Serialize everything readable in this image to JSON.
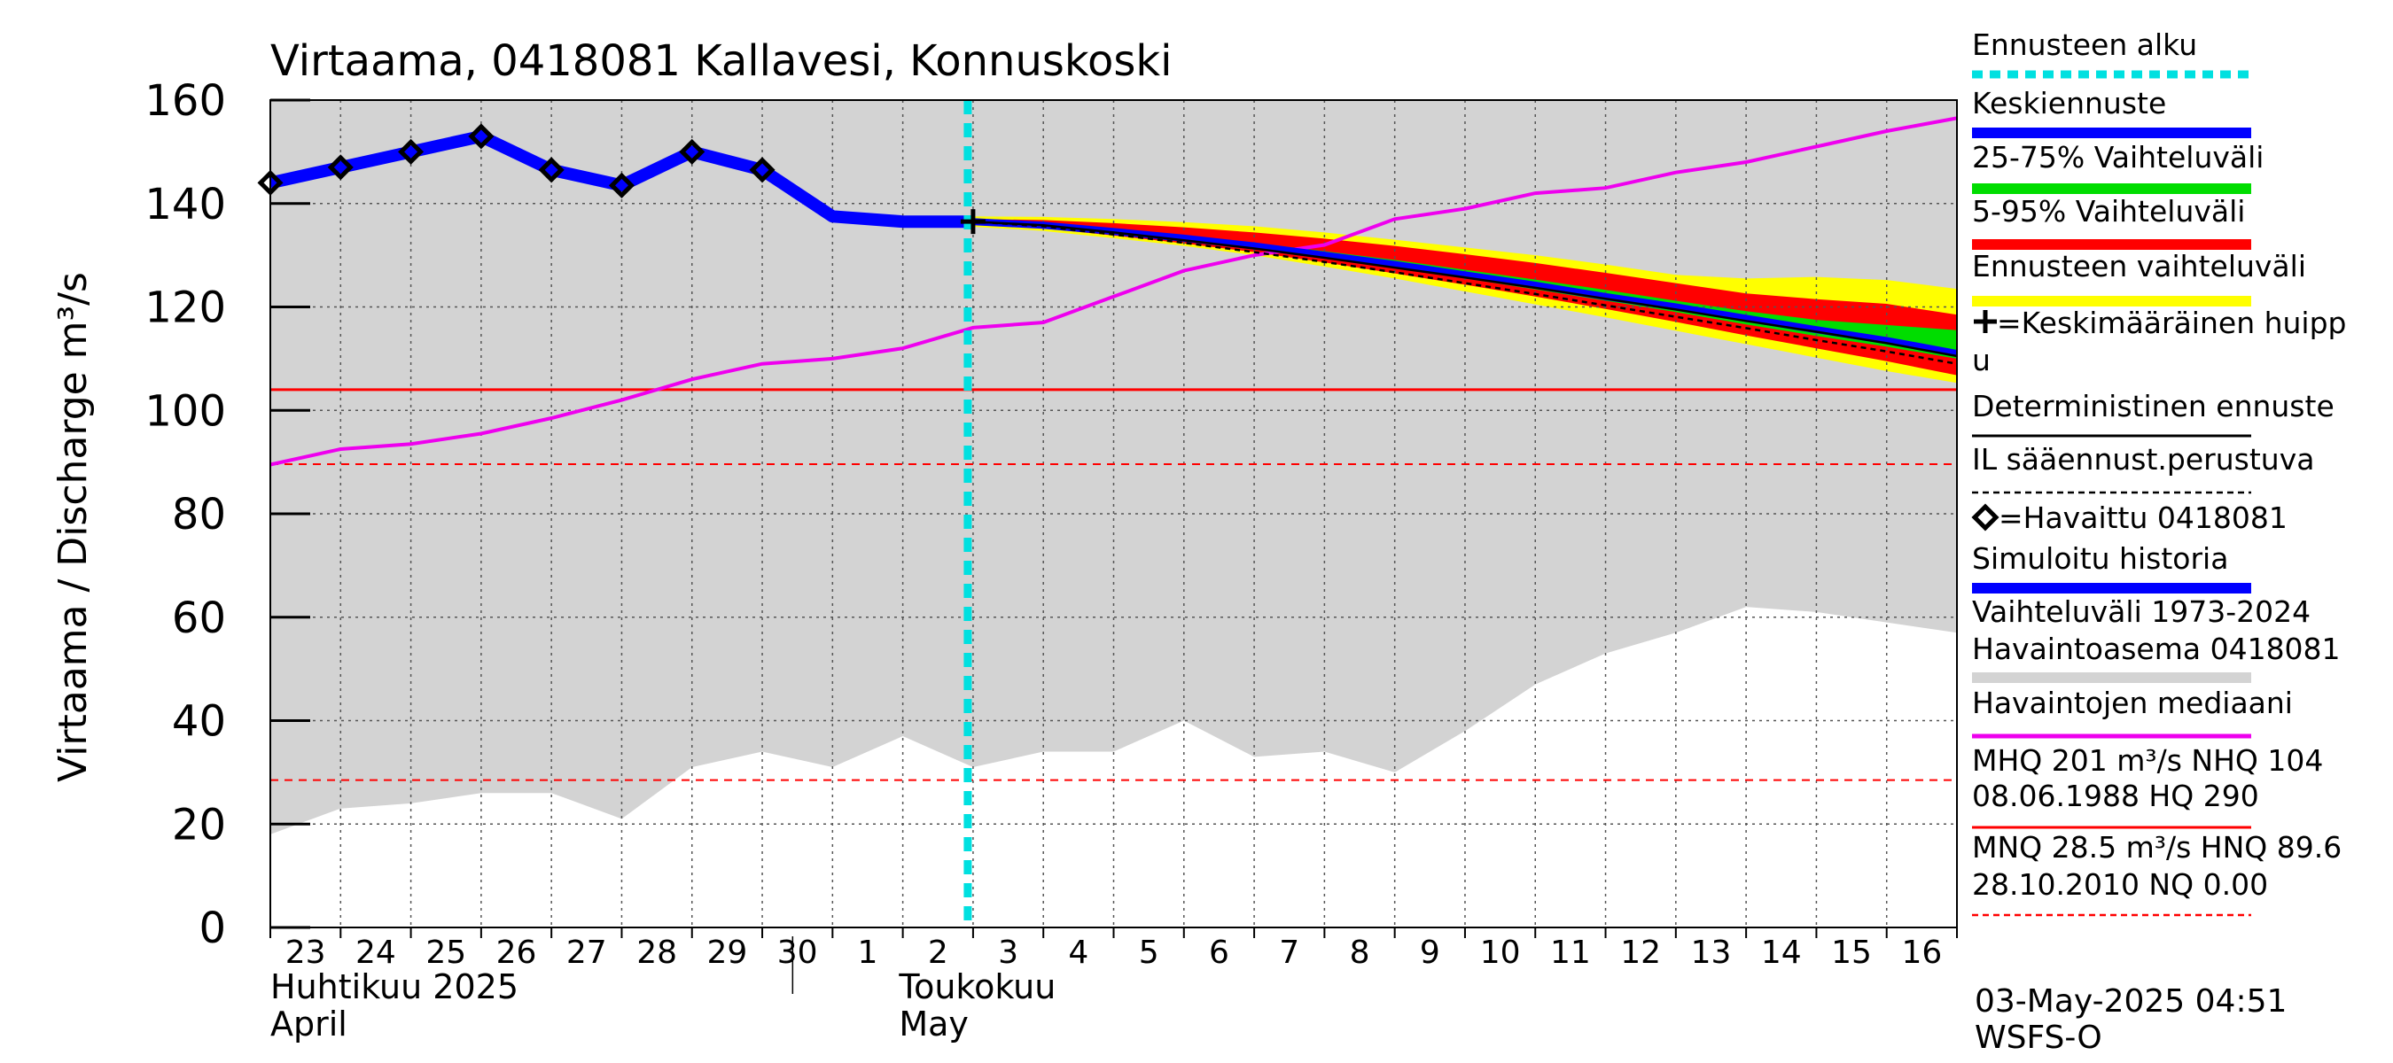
{
  "chart_data": {
    "type": "line",
    "title": "Virtaama, 0418081 Kallavesi, Konnuskoski",
    "ylabel": "Virtaama / Discharge   m³/s",
    "ylim": [
      0,
      160
    ],
    "yticks": [
      0,
      20,
      40,
      60,
      80,
      100,
      120,
      140,
      160
    ],
    "x_start_day": 0,
    "x_end_day": 24,
    "day_labels": [
      "23",
      "24",
      "25",
      "26",
      "27",
      "28",
      "29",
      "30",
      "1",
      "2",
      "3",
      "4",
      "5",
      "6",
      "7",
      "8",
      "9",
      "10",
      "11",
      "12",
      "13",
      "14",
      "15",
      "16"
    ],
    "month_labels": [
      {
        "day": 0,
        "line1": "Huhtikuu  2025",
        "line2": "April"
      },
      {
        "day": 8,
        "line1": "Toukokuu",
        "line2": "May"
      }
    ],
    "forecast_start_day": 10,
    "grid": true,
    "series": {
      "range_hist_upper": [
        160,
        160,
        160,
        160,
        160,
        160,
        160,
        160,
        160,
        160,
        160,
        160,
        160,
        160,
        160,
        160,
        160,
        160,
        160,
        160,
        160,
        160,
        160,
        160,
        160
      ],
      "range_hist_lower": [
        18,
        23,
        24,
        26,
        26,
        21,
        31,
        34,
        31,
        37,
        31,
        34,
        34,
        40,
        33,
        34,
        30,
        38,
        47,
        53,
        57,
        62,
        61,
        59,
        57
      ],
      "median": [
        89.5,
        92.5,
        93.5,
        95.5,
        98.5,
        102,
        106,
        109,
        110,
        112,
        116,
        117,
        122,
        127,
        130,
        132,
        137,
        139,
        142,
        143,
        146,
        148,
        151,
        154,
        156.5
      ],
      "observed_x": [
        0,
        1,
        2,
        3,
        4,
        5,
        6,
        7
      ],
      "observed_y": [
        144,
        147,
        150,
        153,
        146.5,
        143.5,
        150,
        146.5
      ],
      "simulated_x": [
        0,
        1,
        2,
        3,
        4,
        5,
        6,
        7,
        8,
        9,
        10
      ],
      "simulated_y": [
        144,
        147,
        150,
        153,
        146.5,
        143.5,
        150,
        146.5,
        137.5,
        136.5,
        136.5
      ],
      "forecast_x": [
        10,
        11,
        12,
        13,
        14,
        15,
        16,
        17,
        18,
        19,
        20,
        21,
        22,
        23,
        24
      ],
      "forecast_mean": [
        136.5,
        135.8,
        134.6,
        133.3,
        131.8,
        130,
        128.2,
        126.2,
        124.2,
        122,
        120,
        117.8,
        115.6,
        113.5,
        111
      ],
      "ens_upper": [
        137.5,
        137.4,
        137,
        136.4,
        135.6,
        134.4,
        133,
        131.5,
        130,
        128.2,
        126.2,
        125.5,
        125.8,
        125.2,
        123.5
      ],
      "ens_lower": [
        135.5,
        134.7,
        133.3,
        131.8,
        130,
        127.8,
        125.5,
        123,
        120.5,
        118,
        115.4,
        112.8,
        110.2,
        107.6,
        105.3
      ],
      "p5_95_upper": [
        137,
        136.8,
        136.2,
        135.4,
        134.4,
        133.2,
        131.8,
        130.2,
        128.5,
        126.6,
        124.6,
        122.6,
        121.5,
        120.6,
        118.5
      ],
      "p5_95_lower": [
        136,
        135.2,
        133.8,
        132.3,
        130.6,
        128.6,
        126.5,
        124.3,
        122,
        119.6,
        117.1,
        114.5,
        112,
        109.5,
        106.8
      ],
      "p25_75_upper": [
        136.7,
        136.1,
        135,
        133.8,
        132.4,
        130.8,
        129.1,
        127.2,
        125.3,
        123.3,
        121.2,
        119.2,
        117.5,
        116.5,
        115.5
      ],
      "p25_75_lower": [
        136.3,
        135.6,
        134.3,
        132.9,
        131.3,
        129.5,
        127.6,
        125.5,
        123.4,
        121.2,
        119,
        116.6,
        114.4,
        112.3,
        110
      ],
      "deterministic": [
        136.5,
        135.8,
        134.4,
        132.9,
        131.3,
        129.5,
        127.6,
        125.7,
        123.7,
        121.6,
        119.5,
        117.3,
        115.2,
        113,
        110.5
      ],
      "il_forecast": [
        136.5,
        135.6,
        134,
        132.4,
        130.6,
        128.7,
        126.7,
        124.6,
        122.5,
        120.3,
        118.1,
        115.9,
        113.6,
        111.4,
        109
      ]
    },
    "mean_peak": {
      "day": 10,
      "value": 136.5
    },
    "reference_lines": {
      "MHQ": 201,
      "NHQ": 104,
      "HQ": 290,
      "MNQ": 28.5,
      "HNQ": 89.6,
      "NQ": 0.0
    },
    "colors": {
      "range_fill": "#d3d3d3",
      "ennuste_alku": "#00e0e0",
      "keskiennuste": "#0000ff",
      "p25_75": "#00dd00",
      "p5_95": "#ff0000",
      "ens_range": "#ffff00",
      "deterministic": "#000000",
      "median": "#ee00ee",
      "simulated": "#0000ff",
      "observed_marker": "#000000",
      "nhq_line": "#ff0000"
    },
    "legend": [
      {
        "key": "ennuste_alku",
        "label": "Ennusteen alku",
        "style": "dotted-thick",
        "color": "#00e0e0"
      },
      {
        "key": "keskiennuste",
        "label": "Keskiennuste",
        "style": "thick",
        "color": "#0000ff"
      },
      {
        "key": "p25_75",
        "label": "25-75% Vaihteluväli",
        "style": "thick",
        "color": "#00dd00"
      },
      {
        "key": "p5_95",
        "label": "5-95% Vaihteluväli",
        "style": "thick",
        "color": "#ff0000"
      },
      {
        "key": "ens_range",
        "label": "Ennusteen vaihteluväli",
        "style": "thick",
        "color": "#ffff00"
      },
      {
        "key": "mean_peak",
        "label": "=Keskimääräinen huipp",
        "label2": "u",
        "style": "plus",
        "color": "#000000"
      },
      {
        "key": "deterministic",
        "label": "Deterministinen ennuste",
        "style": "thin",
        "color": "#000000"
      },
      {
        "key": "il",
        "label": "IL sääennust.perustuva",
        "style": "dashed",
        "color": "#000000"
      },
      {
        "key": "observed",
        "label": "=Havaittu 0418081",
        "style": "diamond",
        "color": "#000000"
      },
      {
        "key": "simulated",
        "label": "Simuloitu historia",
        "style": "thick",
        "color": "#0000ff"
      },
      {
        "key": "range_hist",
        "label": "Vaihteluväli 1973-2024",
        "label2": " Havaintoasema 0418081",
        "style": "thick",
        "color": "#d3d3d3"
      },
      {
        "key": "median",
        "label": "Havaintojen mediaani",
        "style": "medium",
        "color": "#ee00ee"
      },
      {
        "key": "mhq",
        "label": "MHQ  201 m³/s NHQ  104",
        "label2": "08.06.1988 HQ  290",
        "style": "thin",
        "color": "#ff0000"
      },
      {
        "key": "mnq",
        "label": "MNQ 28.5 m³/s HNQ 89.6",
        "label2": "28.10.2010 NQ 0.00",
        "style": "dashed",
        "color": "#ff0000"
      }
    ]
  },
  "footer": "03-May-2025 04:51 WSFS-O"
}
